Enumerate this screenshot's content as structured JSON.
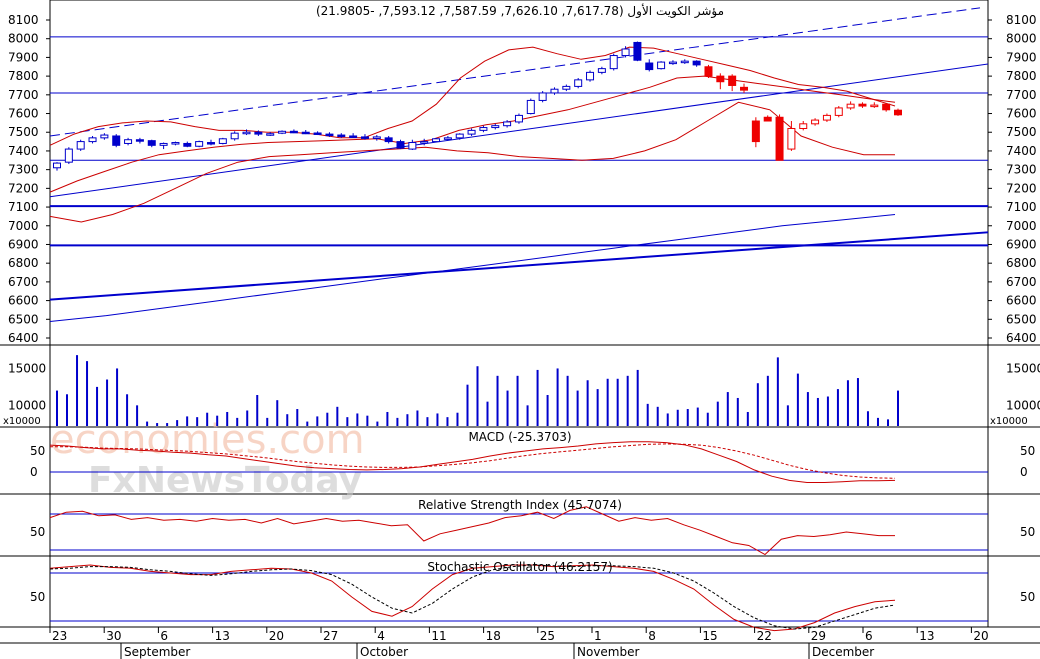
{
  "title": "مؤشر الكويت الأول (7,617.78, 7,626.10, 7,587.59, 7,593.12, -21.9805)",
  "watermark": {
    "line1": "economies.com",
    "line2": "FxNewsToday"
  },
  "colors": {
    "up": "#0000cc",
    "down": "#ee0000",
    "line": "#0000cc",
    "band": "#cc0000",
    "grid": "#000000"
  },
  "chart_data": [
    {
      "type": "candlestick",
      "name": "price",
      "yticks": [
        8100,
        8000,
        7900,
        7800,
        7700,
        7600,
        7500,
        7400,
        7300,
        7200,
        7100,
        7000,
        6900,
        6800,
        6700,
        6600,
        6500,
        6400
      ],
      "ylim": [
        6360,
        8190
      ],
      "hlines": [
        8010,
        7710,
        7350,
        7105,
        6895
      ],
      "candles": [
        {
          "o": 7310,
          "h": 7340,
          "l": 7295,
          "c": 7335
        },
        {
          "o": 7340,
          "h": 7420,
          "l": 7330,
          "c": 7410
        },
        {
          "o": 7410,
          "h": 7460,
          "l": 7400,
          "c": 7450
        },
        {
          "o": 7450,
          "h": 7480,
          "l": 7440,
          "c": 7470
        },
        {
          "o": 7470,
          "h": 7495,
          "l": 7460,
          "c": 7485
        },
        {
          "o": 7480,
          "h": 7490,
          "l": 7420,
          "c": 7430
        },
        {
          "o": 7440,
          "h": 7470,
          "l": 7430,
          "c": 7460
        },
        {
          "o": 7460,
          "h": 7470,
          "l": 7440,
          "c": 7455
        },
        {
          "o": 7455,
          "h": 7460,
          "l": 7420,
          "c": 7430
        },
        {
          "o": 7430,
          "h": 7445,
          "l": 7410,
          "c": 7440
        },
        {
          "o": 7440,
          "h": 7450,
          "l": 7430,
          "c": 7445
        },
        {
          "o": 7440,
          "h": 7450,
          "l": 7420,
          "c": 7425
        },
        {
          "o": 7425,
          "h": 7455,
          "l": 7420,
          "c": 7450
        },
        {
          "o": 7445,
          "h": 7460,
          "l": 7430,
          "c": 7440
        },
        {
          "o": 7440,
          "h": 7470,
          "l": 7435,
          "c": 7465
        },
        {
          "o": 7465,
          "h": 7505,
          "l": 7455,
          "c": 7495
        },
        {
          "o": 7495,
          "h": 7515,
          "l": 7485,
          "c": 7500
        },
        {
          "o": 7500,
          "h": 7510,
          "l": 7480,
          "c": 7490
        },
        {
          "o": 7488,
          "h": 7500,
          "l": 7480,
          "c": 7492
        },
        {
          "o": 7495,
          "h": 7510,
          "l": 7490,
          "c": 7505
        },
        {
          "o": 7505,
          "h": 7515,
          "l": 7495,
          "c": 7500
        },
        {
          "o": 7500,
          "h": 7512,
          "l": 7490,
          "c": 7496
        },
        {
          "o": 7496,
          "h": 7505,
          "l": 7485,
          "c": 7490
        },
        {
          "o": 7490,
          "h": 7500,
          "l": 7475,
          "c": 7485
        },
        {
          "o": 7485,
          "h": 7495,
          "l": 7470,
          "c": 7480
        },
        {
          "o": 7480,
          "h": 7495,
          "l": 7470,
          "c": 7478
        },
        {
          "o": 7475,
          "h": 7490,
          "l": 7460,
          "c": 7470
        },
        {
          "o": 7470,
          "h": 7485,
          "l": 7455,
          "c": 7475
        },
        {
          "o": 7470,
          "h": 7480,
          "l": 7440,
          "c": 7450
        },
        {
          "o": 7450,
          "h": 7460,
          "l": 7410,
          "c": 7415
        },
        {
          "o": 7410,
          "h": 7460,
          "l": 7405,
          "c": 7445
        },
        {
          "o": 7445,
          "h": 7465,
          "l": 7430,
          "c": 7450
        },
        {
          "o": 7450,
          "h": 7470,
          "l": 7445,
          "c": 7465
        },
        {
          "o": 7465,
          "h": 7480,
          "l": 7455,
          "c": 7470
        },
        {
          "o": 7470,
          "h": 7495,
          "l": 7460,
          "c": 7490
        },
        {
          "o": 7490,
          "h": 7520,
          "l": 7480,
          "c": 7510
        },
        {
          "o": 7510,
          "h": 7535,
          "l": 7500,
          "c": 7525
        },
        {
          "o": 7525,
          "h": 7545,
          "l": 7515,
          "c": 7535
        },
        {
          "o": 7535,
          "h": 7565,
          "l": 7525,
          "c": 7555
        },
        {
          "o": 7555,
          "h": 7600,
          "l": 7545,
          "c": 7590
        },
        {
          "o": 7600,
          "h": 7680,
          "l": 7595,
          "c": 7670
        },
        {
          "o": 7670,
          "h": 7720,
          "l": 7660,
          "c": 7710
        },
        {
          "o": 7710,
          "h": 7740,
          "l": 7700,
          "c": 7730
        },
        {
          "o": 7730,
          "h": 7755,
          "l": 7720,
          "c": 7745
        },
        {
          "o": 7745,
          "h": 7790,
          "l": 7735,
          "c": 7780
        },
        {
          "o": 7780,
          "h": 7830,
          "l": 7770,
          "c": 7820
        },
        {
          "o": 7820,
          "h": 7850,
          "l": 7810,
          "c": 7840
        },
        {
          "o": 7840,
          "h": 7920,
          "l": 7830,
          "c": 7910
        },
        {
          "o": 7910,
          "h": 7960,
          "l": 7900,
          "c": 7945
        },
        {
          "o": 7980,
          "h": 7985,
          "l": 7880,
          "c": 7885
        },
        {
          "o": 7870,
          "h": 7890,
          "l": 7825,
          "c": 7835
        },
        {
          "o": 7840,
          "h": 7880,
          "l": 7835,
          "c": 7875
        },
        {
          "o": 7870,
          "h": 7885,
          "l": 7860,
          "c": 7875
        },
        {
          "o": 7875,
          "h": 7890,
          "l": 7865,
          "c": 7880
        },
        {
          "o": 7880,
          "h": 7885,
          "l": 7850,
          "c": 7860
        },
        {
          "o": 7850,
          "h": 7860,
          "l": 7790,
          "c": 7800
        },
        {
          "o": 7800,
          "h": 7815,
          "l": 7730,
          "c": 7770
        },
        {
          "o": 7800,
          "h": 7810,
          "l": 7720,
          "c": 7750
        },
        {
          "o": 7740,
          "h": 7760,
          "l": 7710,
          "c": 7725
        },
        {
          "o": 7560,
          "h": 7580,
          "l": 7420,
          "c": 7450
        },
        {
          "o": 7580,
          "h": 7590,
          "l": 7560,
          "c": 7560
        },
        {
          "o": 7580,
          "h": 7595,
          "l": 7350,
          "c": 7350
        },
        {
          "o": 7410,
          "h": 7560,
          "l": 7400,
          "c": 7520
        },
        {
          "o": 7520,
          "h": 7560,
          "l": 7510,
          "c": 7545
        },
        {
          "o": 7545,
          "h": 7575,
          "l": 7535,
          "c": 7565
        },
        {
          "o": 7565,
          "h": 7600,
          "l": 7555,
          "c": 7590
        },
        {
          "o": 7590,
          "h": 7640,
          "l": 7580,
          "c": 7630
        },
        {
          "o": 7630,
          "h": 7665,
          "l": 7620,
          "c": 7650
        },
        {
          "o": 7650,
          "h": 7660,
          "l": 7630,
          "c": 7640
        },
        {
          "o": 7640,
          "h": 7660,
          "l": 7630,
          "c": 7645
        },
        {
          "o": 7650,
          "h": 7655,
          "l": 7610,
          "c": 7620
        },
        {
          "o": 7617.78,
          "h": 7626.1,
          "l": 7587.59,
          "c": 7593.12
        }
      ]
    },
    {
      "type": "bar",
      "name": "volume",
      "unit_label": "x10000",
      "yticks": [
        15000,
        10000
      ],
      "ylim": [
        7200,
        17500
      ],
      "values": [
        12000,
        11500,
        16800,
        16000,
        12500,
        13500,
        15000,
        11500,
        10000,
        7800,
        7600,
        7600,
        8000,
        8500,
        8400,
        9000,
        8600,
        9100,
        8300,
        9300,
        11400,
        8300,
        10700,
        8800,
        9500,
        7800,
        8500,
        9000,
        9800,
        8400,
        8900,
        8600,
        7800,
        9100,
        8300,
        8800,
        9300,
        8400,
        8900,
        8400,
        9000,
        12800,
        15300,
        10500,
        14000,
        12000,
        14000,
        10000,
        14800,
        11400,
        15000,
        14000,
        12000,
        13400,
        12200,
        13600,
        13600,
        14000,
        14800,
        10200,
        9800,
        8900,
        9400,
        9500,
        9700,
        9000,
        10500,
        11800,
        11000,
        9100,
        13000,
        14000,
        16500,
        10000,
        14300,
        11800,
        11000,
        11200,
        12200,
        13400,
        13700,
        9200,
        8300,
        8100,
        12000
      ]
    },
    {
      "type": "line",
      "name": "MACD",
      "title": "MACD (-25.3703)",
      "yticks": [
        50,
        0
      ],
      "series": [
        {
          "name": "MACD",
          "values": [
            64,
            62,
            58,
            55,
            55,
            52,
            50,
            47,
            45,
            41,
            38,
            32,
            26,
            20,
            14,
            10,
            8,
            6,
            5,
            6,
            8,
            12,
            18,
            24,
            30,
            38,
            45,
            50,
            55,
            58,
            62,
            67,
            70,
            72,
            72,
            70,
            65,
            55,
            40,
            25,
            5,
            -10,
            -20,
            -25,
            -25,
            -23,
            -21,
            -21,
            -20
          ]
        },
        {
          "name": "Signal",
          "values": [
            60,
            60,
            59,
            57,
            56,
            55,
            53,
            51,
            49,
            46,
            43,
            39,
            35,
            30,
            25,
            21,
            17,
            14,
            12,
            11,
            11,
            12,
            15,
            18,
            22,
            27,
            33,
            39,
            44,
            48,
            52,
            56,
            60,
            63,
            66,
            67,
            66,
            64,
            58,
            50,
            40,
            28,
            16,
            6,
            -2,
            -8,
            -12,
            -14,
            -15
          ]
        }
      ]
    },
    {
      "type": "line",
      "name": "RSI",
      "title": "Relative Strength Index (45.7074)",
      "yticks": [
        50
      ],
      "hlines": [
        70,
        30
      ],
      "values": [
        66,
        72,
        73,
        68,
        69,
        64,
        66,
        63,
        64,
        62,
        65,
        63,
        64,
        60,
        65,
        59,
        62,
        65,
        62,
        63,
        60,
        57,
        58,
        40,
        48,
        52,
        56,
        60,
        66,
        68,
        72,
        65,
        74,
        78,
        70,
        62,
        66,
        63,
        65,
        58,
        52,
        45,
        38,
        35,
        25,
        42,
        46,
        45,
        47,
        50,
        48,
        46,
        46
      ]
    },
    {
      "type": "line",
      "name": "Stochastic",
      "title": "Stochastic Oscillator (46.2157)",
      "yticks": [
        50
      ],
      "hlines": [
        80,
        20
      ],
      "series": [
        {
          "name": "%K",
          "values": [
            86,
            88,
            90,
            87,
            86,
            82,
            80,
            78,
            78,
            82,
            84,
            86,
            85,
            80,
            70,
            50,
            32,
            26,
            38,
            60,
            78,
            86,
            88,
            90,
            90,
            88,
            89,
            90,
            88,
            86,
            82,
            72,
            60,
            40,
            22,
            12,
            8,
            10,
            18,
            30,
            38,
            44,
            46
          ]
        },
        {
          "name": "%D",
          "values": [
            85,
            86,
            88,
            88,
            87,
            84,
            82,
            79,
            77,
            79,
            82,
            84,
            85,
            83,
            78,
            66,
            50,
            36,
            30,
            42,
            60,
            75,
            84,
            88,
            90,
            89,
            88,
            89,
            89,
            88,
            86,
            80,
            70,
            55,
            38,
            24,
            14,
            10,
            12,
            20,
            28,
            36,
            40
          ]
        }
      ]
    }
  ],
  "x_axis": {
    "days": [
      "23",
      "30",
      "6",
      "13",
      "20",
      "27",
      "4",
      "11",
      "18",
      "25",
      "1",
      "8",
      "15",
      "22",
      "29",
      "6",
      "13",
      "20"
    ],
    "months": [
      "September",
      "October",
      "November",
      "December"
    ]
  }
}
